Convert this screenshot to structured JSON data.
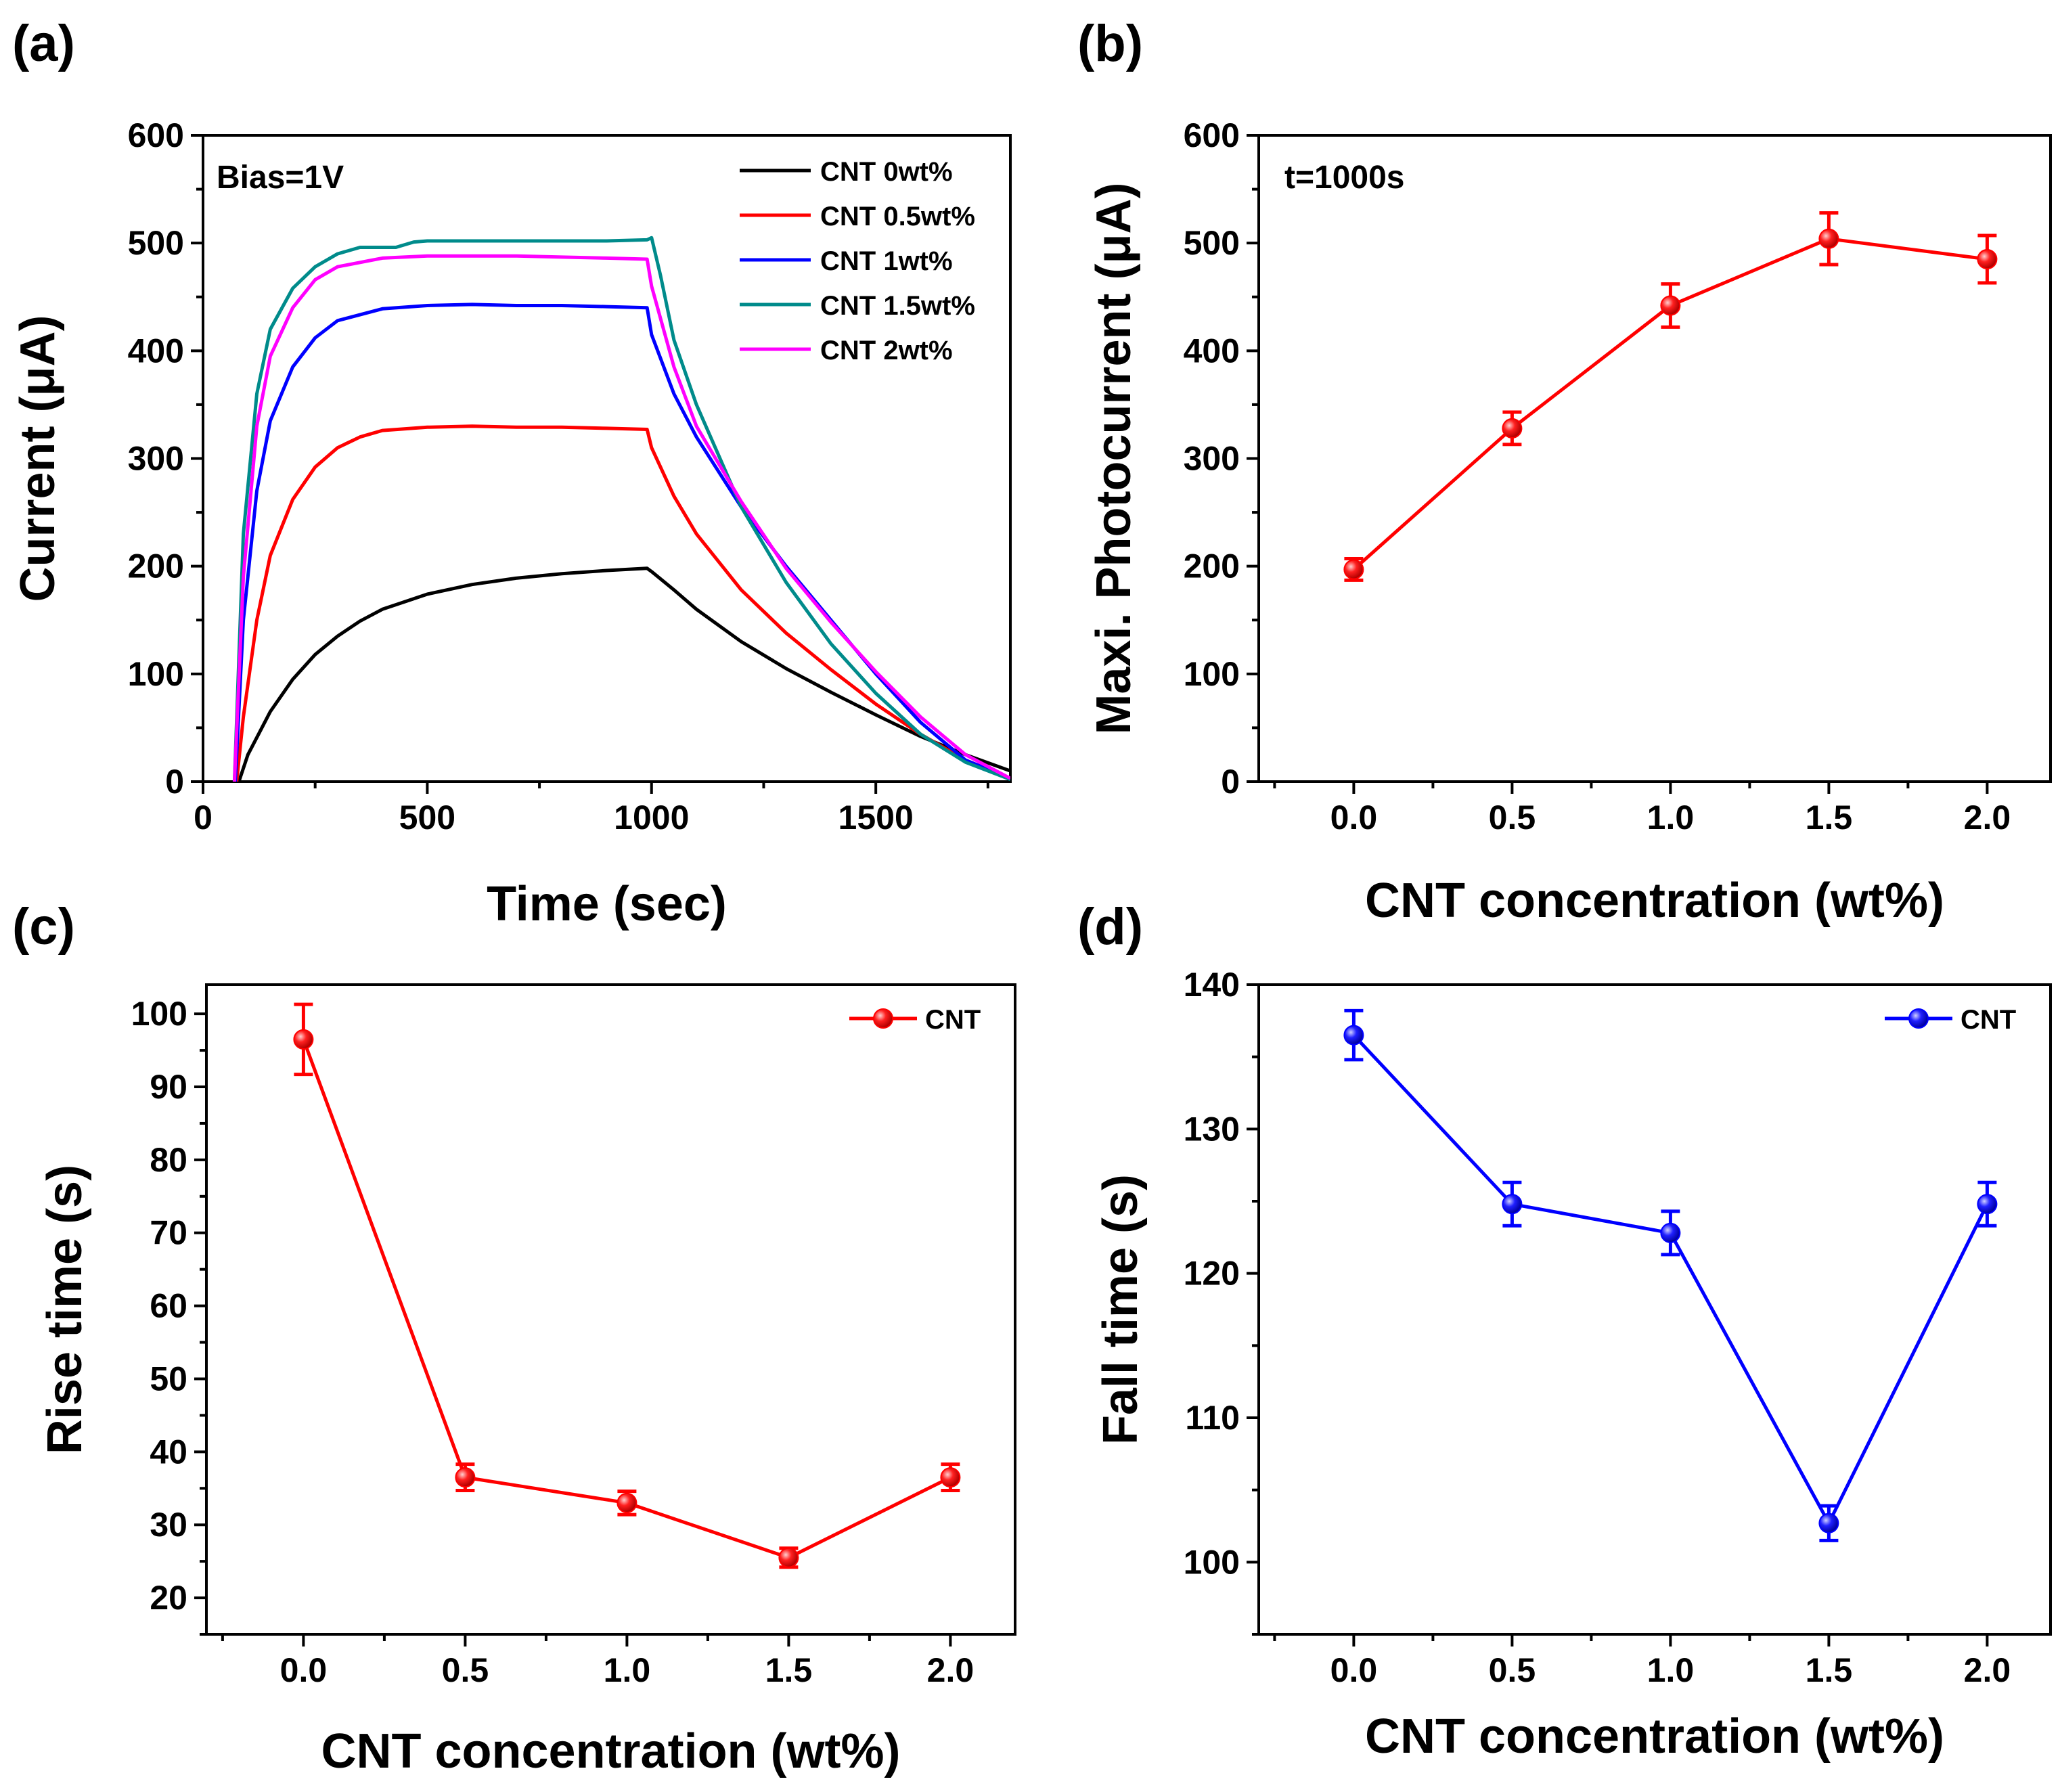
{
  "chart_data": [
    {
      "id": "a",
      "panel_label": "(a)",
      "type": "line",
      "annotation": "Bias=1V",
      "xlabel": "Time (sec)",
      "ylabel": "Current (μA)",
      "xlim": [
        0,
        1800
      ],
      "ylim": [
        0,
        600
      ],
      "xticks": [
        0,
        500,
        1000,
        1500
      ],
      "xtick_labels": [
        "0",
        "500",
        "1000",
        "1500"
      ],
      "yticks": [
        0,
        100,
        200,
        300,
        400,
        500,
        600
      ],
      "ytick_labels": [
        "0",
        "100",
        "200",
        "300",
        "400",
        "500",
        "600"
      ],
      "legend_position": "top-right",
      "series": [
        {
          "name": "CNT 0wt%",
          "color": "#000000",
          "points": [
            [
              80,
              0
            ],
            [
              100,
              25
            ],
            [
              150,
              65
            ],
            [
              200,
              95
            ],
            [
              250,
              118
            ],
            [
              300,
              135
            ],
            [
              350,
              149
            ],
            [
              400,
              160
            ],
            [
              500,
              174
            ],
            [
              600,
              183
            ],
            [
              700,
              189
            ],
            [
              800,
              193
            ],
            [
              900,
              196
            ],
            [
              990,
              198
            ],
            [
              1000,
              195
            ],
            [
              1050,
              178
            ],
            [
              1100,
              160
            ],
            [
              1200,
              130
            ],
            [
              1300,
              105
            ],
            [
              1400,
              83
            ],
            [
              1500,
              62
            ],
            [
              1600,
              42
            ],
            [
              1700,
              25
            ],
            [
              1800,
              10
            ]
          ]
        },
        {
          "name": "CNT 0.5wt%",
          "color": "#ff0000",
          "points": [
            [
              75,
              0
            ],
            [
              90,
              60
            ],
            [
              120,
              150
            ],
            [
              150,
              210
            ],
            [
              200,
              262
            ],
            [
              250,
              292
            ],
            [
              300,
              310
            ],
            [
              350,
              320
            ],
            [
              400,
              326
            ],
            [
              500,
              329
            ],
            [
              600,
              330
            ],
            [
              700,
              329
            ],
            [
              800,
              329
            ],
            [
              900,
              328
            ],
            [
              990,
              327
            ],
            [
              1000,
              310
            ],
            [
              1050,
              265
            ],
            [
              1100,
              230
            ],
            [
              1200,
              178
            ],
            [
              1300,
              138
            ],
            [
              1400,
              104
            ],
            [
              1500,
              72
            ],
            [
              1600,
              44
            ],
            [
              1700,
              20
            ],
            [
              1800,
              3
            ]
          ]
        },
        {
          "name": "CNT 1wt%",
          "color": "#0000ff",
          "points": [
            [
              72,
              0
            ],
            [
              90,
              150
            ],
            [
              120,
              270
            ],
            [
              150,
              335
            ],
            [
              200,
              385
            ],
            [
              250,
              412
            ],
            [
              300,
              428
            ],
            [
              400,
              439
            ],
            [
              500,
              442
            ],
            [
              600,
              443
            ],
            [
              700,
              442
            ],
            [
              800,
              442
            ],
            [
              900,
              441
            ],
            [
              990,
              440
            ],
            [
              1000,
              415
            ],
            [
              1050,
              360
            ],
            [
              1100,
              320
            ],
            [
              1200,
              255
            ],
            [
              1300,
              200
            ],
            [
              1400,
              150
            ],
            [
              1500,
              100
            ],
            [
              1600,
              55
            ],
            [
              1700,
              20
            ],
            [
              1800,
              3
            ]
          ]
        },
        {
          "name": "CNT 1.5wt%",
          "color": "#008b8b",
          "points": [
            [
              70,
              0
            ],
            [
              90,
              230
            ],
            [
              120,
              360
            ],
            [
              150,
              420
            ],
            [
              200,
              458
            ],
            [
              250,
              478
            ],
            [
              300,
              490
            ],
            [
              350,
              496
            ],
            [
              400,
              496
            ],
            [
              430,
              496
            ],
            [
              470,
              501
            ],
            [
              500,
              502
            ],
            [
              600,
              502
            ],
            [
              700,
              502
            ],
            [
              800,
              502
            ],
            [
              900,
              502
            ],
            [
              990,
              503
            ],
            [
              1000,
              505
            ],
            [
              1020,
              470
            ],
            [
              1050,
              410
            ],
            [
              1100,
              350
            ],
            [
              1200,
              255
            ],
            [
              1300,
              185
            ],
            [
              1400,
              128
            ],
            [
              1500,
              82
            ],
            [
              1600,
              44
            ],
            [
              1700,
              18
            ],
            [
              1800,
              2
            ]
          ]
        },
        {
          "name": "CNT 2wt%",
          "color": "#ff00ff",
          "points": [
            [
              70,
              0
            ],
            [
              90,
              190
            ],
            [
              120,
              330
            ],
            [
              150,
              395
            ],
            [
              200,
              440
            ],
            [
              250,
              466
            ],
            [
              300,
              478
            ],
            [
              400,
              486
            ],
            [
              500,
              488
            ],
            [
              600,
              488
            ],
            [
              700,
              488
            ],
            [
              800,
              487
            ],
            [
              900,
              486
            ],
            [
              990,
              485
            ],
            [
              1000,
              460
            ],
            [
              1050,
              385
            ],
            [
              1100,
              330
            ],
            [
              1200,
              260
            ],
            [
              1300,
              198
            ],
            [
              1400,
              148
            ],
            [
              1500,
              102
            ],
            [
              1600,
              60
            ],
            [
              1700,
              25
            ],
            [
              1800,
              3
            ]
          ]
        }
      ]
    },
    {
      "id": "b",
      "panel_label": "(b)",
      "type": "line",
      "annotation": "t=1000s",
      "xlabel": "CNT concentration (wt%)",
      "ylabel": "Maxi. Photocurrent (μA)",
      "xlim": [
        -0.3,
        2.2
      ],
      "ylim": [
        0,
        600
      ],
      "xticks": [
        0.0,
        0.5,
        1.0,
        1.5,
        2.0
      ],
      "xtick_labels": [
        "0.0",
        "0.5",
        "1.0",
        "1.5",
        "2.0"
      ],
      "yticks": [
        0,
        100,
        200,
        300,
        400,
        500,
        600
      ],
      "ytick_labels": [
        "0",
        "100",
        "200",
        "300",
        "400",
        "500",
        "600"
      ],
      "series": [
        {
          "name": "CNT",
          "color": "#ff0000",
          "x": [
            0.0,
            0.5,
            1.0,
            1.5,
            2.0
          ],
          "y": [
            197,
            328,
            442,
            504,
            485
          ],
          "err": [
            10,
            15,
            20,
            24,
            22
          ]
        }
      ]
    },
    {
      "id": "c",
      "panel_label": "(c)",
      "type": "line",
      "xlabel": "CNT concentration (wt%)",
      "ylabel": "Rise time (s)",
      "xlim": [
        -0.3,
        2.2
      ],
      "ylim": [
        15,
        104
      ],
      "xticks": [
        0.0,
        0.5,
        1.0,
        1.5,
        2.0
      ],
      "xtick_labels": [
        "0.0",
        "0.5",
        "1.0",
        "1.5",
        "2.0"
      ],
      "yticks": [
        20,
        30,
        40,
        50,
        60,
        70,
        80,
        90,
        100
      ],
      "ytick_labels": [
        "20",
        "30",
        "40",
        "50",
        "60",
        "70",
        "80",
        "90",
        "100"
      ],
      "legend_position": "top-right",
      "series": [
        {
          "name": "CNT",
          "color": "#ff0000",
          "x": [
            0.0,
            0.5,
            1.0,
            1.5,
            2.0
          ],
          "y": [
            96.5,
            36.5,
            33.0,
            25.5,
            36.5
          ],
          "err": [
            4.8,
            1.8,
            1.6,
            1.3,
            1.8
          ]
        }
      ]
    },
    {
      "id": "d",
      "panel_label": "(d)",
      "type": "line",
      "xlabel": "CNT concentration (wt%)",
      "ylabel": "Fall time (s)",
      "xlim": [
        -0.3,
        2.2
      ],
      "ylim": [
        95,
        140
      ],
      "xticks": [
        0.0,
        0.5,
        1.0,
        1.5,
        2.0
      ],
      "xtick_labels": [
        "0.0",
        "0.5",
        "1.0",
        "1.5",
        "2.0"
      ],
      "yticks": [
        100,
        110,
        120,
        130,
        140
      ],
      "ytick_labels": [
        "100",
        "110",
        "120",
        "130",
        "140"
      ],
      "legend_position": "top-right",
      "series": [
        {
          "name": "CNT",
          "color": "#0000ff",
          "x": [
            0.0,
            0.5,
            1.0,
            1.5,
            2.0
          ],
          "y": [
            136.5,
            124.8,
            122.8,
            102.7,
            124.8
          ],
          "err": [
            1.7,
            1.5,
            1.5,
            1.2,
            1.5
          ]
        }
      ]
    }
  ]
}
